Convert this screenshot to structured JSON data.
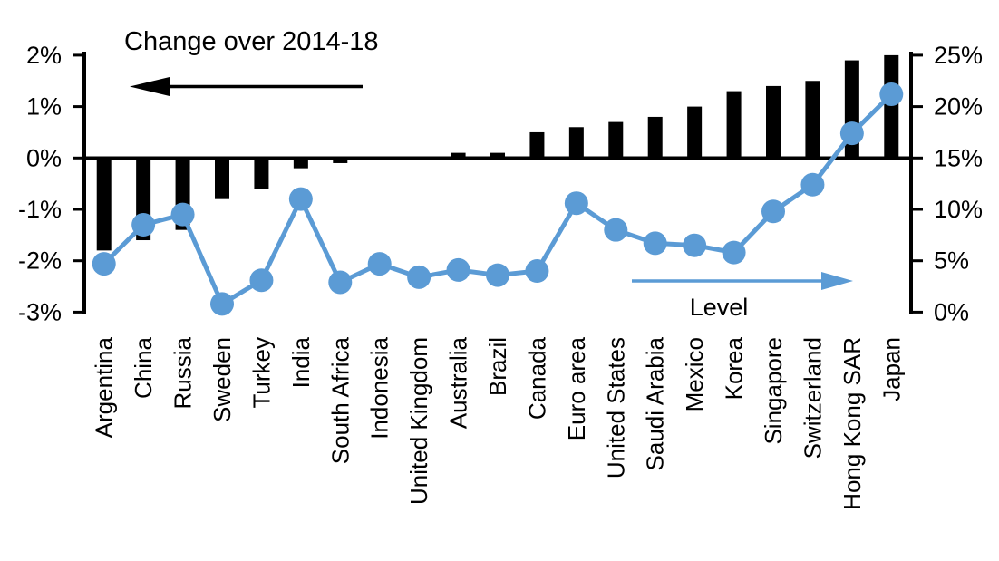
{
  "chart_data": {
    "type": "combo_bar_line_dual_axis",
    "title": "Change over 2014-18",
    "grid": "off",
    "legend": "annotations with arrows instead of legend box",
    "categories": [
      "Argentina",
      "China",
      "Russia",
      "Sweden",
      "Turkey",
      "India",
      "South Africa",
      "Indonesia",
      "United Kingdom",
      "Australia",
      "Brazil",
      "Canada",
      "Euro area",
      "United States",
      "Saudi Arabia",
      "Mexico",
      "Korea",
      "Singapore",
      "Switzerland",
      "Hong Kong SAR",
      "Japan"
    ],
    "series": [
      {
        "name": "Change over 2014-18",
        "type": "bar",
        "axis": "left",
        "color": "#000000",
        "values": [
          -1.8,
          -1.6,
          -1.4,
          -0.8,
          -0.6,
          -0.2,
          -0.1,
          0,
          0,
          0.1,
          0.1,
          0.5,
          0.6,
          0.7,
          0.8,
          1.0,
          1.3,
          1.4,
          1.5,
          1.9,
          2.0
        ]
      },
      {
        "name": "Level",
        "type": "line",
        "axis": "right",
        "color": "#5B9BD5",
        "values": [
          4.7,
          8.5,
          9.5,
          0.8,
          3.1,
          11.0,
          2.9,
          4.7,
          3.4,
          4.1,
          3.6,
          4.0,
          10.6,
          8.0,
          6.7,
          6.5,
          5.8,
          9.8,
          12.4,
          17.4,
          21.2
        ]
      }
    ],
    "left_axis": {
      "tick_labels": [
        "2%",
        "1%",
        "0%",
        "-1%",
        "-2%",
        "-3%"
      ],
      "tick_values": [
        2,
        1,
        0,
        -1,
        -2,
        -3
      ],
      "min": -3,
      "max": 2
    },
    "right_axis": {
      "tick_labels": [
        "25%",
        "20%",
        "15%",
        "10%",
        "5%",
        "0%"
      ],
      "tick_values": [
        25,
        20,
        15,
        10,
        5,
        0
      ],
      "min": 0,
      "max": 25
    },
    "annotations": [
      {
        "text": "Change over 2014-18",
        "arrow": "left",
        "arrow_color": "#000000"
      },
      {
        "text": "Level",
        "arrow": "right",
        "arrow_color": "#5B9BD5"
      }
    ]
  }
}
